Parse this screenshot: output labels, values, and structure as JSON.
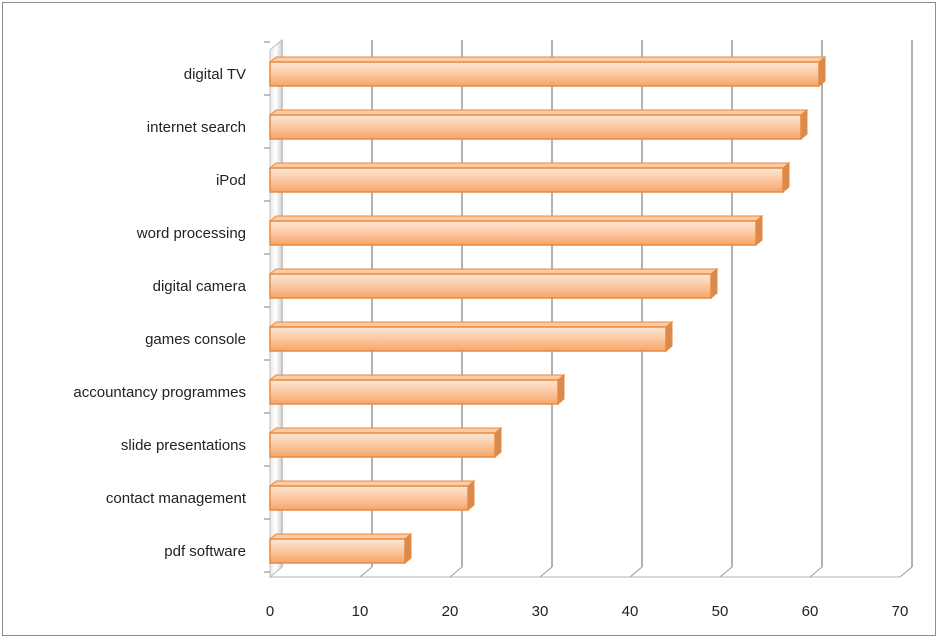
{
  "chart_data": {
    "type": "bar",
    "orientation": "horizontal",
    "style": "3d",
    "title": "",
    "xlabel": "",
    "ylabel": "",
    "categories": [
      "digital TV",
      "internet search",
      "iPod",
      "word processing",
      "digital camera",
      "games console",
      "accountancy programmes",
      "slide presentations",
      "contact management",
      "pdf software"
    ],
    "values": [
      61,
      59,
      57,
      54,
      49,
      44,
      32,
      25,
      22,
      15
    ],
    "xlim": [
      0,
      70
    ],
    "xticks": [
      "0",
      "10",
      "20",
      "30",
      "40",
      "50",
      "60",
      "70"
    ],
    "grid": true,
    "legend": "none",
    "colors": {
      "bar_fill_light": "#fde6d4",
      "bar_fill_mid": "#fbcba6",
      "bar_fill_dark": "#f6a56a",
      "bar_edge": "#e98a3c",
      "bar_end_cap": "#d98a4e",
      "grid": "#9a9a9a",
      "wall": "#bfbfbf",
      "text": "#222222"
    }
  }
}
